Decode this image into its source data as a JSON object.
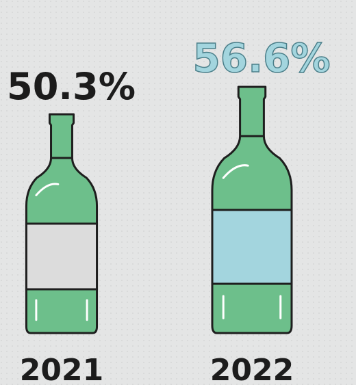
{
  "chart_data": {
    "type": "pictogram",
    "categories": [
      "2021",
      "2022"
    ],
    "values": [
      50.3,
      56.6
    ],
    "value_labels": [
      "50.3%",
      "56.6%"
    ],
    "bottle_color": "#6dbf8b",
    "label_colors": [
      "#dcdcdc",
      "#a3d5de"
    ],
    "value_label_colors": [
      "#1c1c1c",
      "#a3d5de"
    ]
  }
}
